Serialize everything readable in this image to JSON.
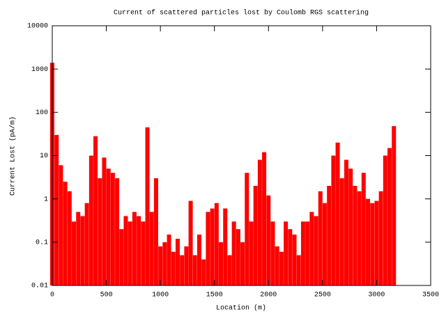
{
  "chart_data": {
    "type": "bar",
    "title": "Current of scattered particles lost by Coulomb RGS scattering",
    "xlabel": "Location (m)",
    "ylabel": "Current Lost (pA/m)",
    "color": "#ff0000",
    "logy": true,
    "xlim": [
      0,
      3500
    ],
    "xticks": [
      0,
      500,
      1000,
      1500,
      2000,
      2500,
      3000,
      3500
    ],
    "ylim": [
      0.01,
      10000
    ],
    "yticks": [
      0.01,
      0.1,
      1,
      10,
      100,
      1000,
      10000
    ],
    "x": [
      0,
      40,
      80,
      120,
      160,
      200,
      240,
      280,
      320,
      360,
      400,
      440,
      480,
      520,
      560,
      600,
      640,
      680,
      720,
      760,
      800,
      840,
      880,
      920,
      960,
      1000,
      1040,
      1080,
      1120,
      1160,
      1200,
      1240,
      1280,
      1320,
      1360,
      1400,
      1440,
      1480,
      1520,
      1560,
      1600,
      1640,
      1680,
      1720,
      1760,
      1800,
      1840,
      1880,
      1920,
      1960,
      2000,
      2040,
      2080,
      2120,
      2160,
      2200,
      2240,
      2280,
      2320,
      2360,
      2400,
      2440,
      2480,
      2520,
      2560,
      2600,
      2640,
      2680,
      2720,
      2760,
      2800,
      2840,
      2880,
      2920,
      2960,
      3000,
      3040,
      3080,
      3120,
      3160
    ],
    "values": [
      1400,
      30,
      6,
      2.5,
      1.5,
      0.3,
      0.5,
      0.4,
      0.8,
      10,
      28,
      3,
      9,
      5,
      4,
      3,
      0.2,
      0.4,
      0.3,
      0.5,
      0.4,
      0.3,
      45,
      0.5,
      3,
      0.08,
      0.1,
      0.15,
      0.06,
      0.12,
      0.05,
      0.08,
      0.9,
      0.05,
      0.15,
      0.04,
      0.5,
      0.6,
      0.8,
      0.1,
      0.6,
      0.05,
      0.3,
      0.2,
      0.1,
      4,
      0.3,
      2,
      8,
      12,
      1.2,
      0.3,
      0.08,
      0.06,
      0.3,
      0.2,
      0.15,
      0.05,
      0.3,
      0.3,
      0.5,
      0.4,
      1.5,
      0.8,
      2,
      10,
      20,
      3,
      8,
      5,
      2,
      1.5,
      4,
      1,
      0.8,
      0.9,
      1.5,
      10,
      15,
      48
    ]
  }
}
